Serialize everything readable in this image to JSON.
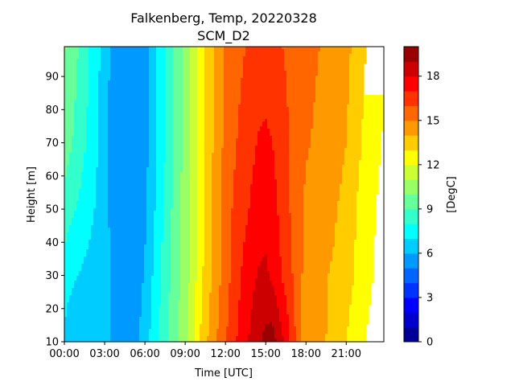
{
  "chart_data": {
    "type": "heatmap",
    "subtype": "filled-contour",
    "title": "Falkenberg, Temp, 20220328",
    "subtitle": "SCM_D2",
    "xlabel": "Time [UTC]",
    "ylabel": "Height [m]",
    "x_ticks": [
      "00:00",
      "03:00",
      "06:00",
      "09:00",
      "12:00",
      "15:00",
      "18:00",
      "21:00"
    ],
    "y_ticks": [
      "10",
      "20",
      "30",
      "40",
      "50",
      "60",
      "70",
      "80",
      "90"
    ],
    "x_range_hours": [
      0,
      23.8
    ],
    "y_range_m": [
      10,
      99
    ],
    "colorbar": {
      "label": "[DegC]",
      "ticks": [
        "0",
        "3",
        "6",
        "9",
        "12",
        "15",
        "18"
      ],
      "range": [
        0,
        20
      ],
      "level_step": 1,
      "colormap": "jet"
    },
    "grid": false,
    "transects": [
      {
        "height_m": 10,
        "x_hours": [
          0,
          0.3,
          0.8,
          1.5,
          2.5,
          3.5,
          4.5,
          5.5,
          6.0,
          6.5,
          7.0,
          7.5,
          8.0,
          8.5,
          9.0,
          9.5,
          10.0,
          10.5,
          11.0,
          11.5,
          12.0,
          12.5,
          13.0,
          13.5,
          14.0,
          14.5,
          15.0,
          15.5,
          16.0,
          16.5,
          17.0,
          17.5,
          18.0,
          19.0,
          20.0,
          21.0,
          22.0,
          23.0,
          23.8
        ],
        "temp_degc": [
          6.8,
          6.5,
          6.2,
          6.0,
          6.0,
          6.0,
          6.0,
          6.0,
          6.3,
          7.3,
          8.0,
          8.8,
          9.3,
          10.0,
          10.8,
          11.7,
          12.8,
          13.8,
          14.4,
          15.2,
          15.9,
          16.6,
          17.2,
          17.8,
          18.3,
          18.9,
          19.3,
          19.5,
          18.6,
          17.7,
          16.5,
          15.3,
          14.6,
          14.2,
          13.8,
          13.0,
          12.3,
          11.6,
          11.3
        ]
      },
      {
        "height_m": 30,
        "x_hours": [
          0,
          0.5,
          1.5,
          2.5,
          3.5,
          4.5,
          5.5,
          6.0,
          6.5,
          7.0,
          7.5,
          8.0,
          8.5,
          9.0,
          9.5,
          10.0,
          10.5,
          11.0,
          11.5,
          12.0,
          12.5,
          13.0,
          13.5,
          14.0,
          14.5,
          15.0,
          15.5,
          16.0,
          16.5,
          17.0,
          17.5,
          18.0,
          19.0,
          20.0,
          21.0,
          22.0,
          23.0,
          23.8
        ],
        "temp_degc": [
          7.5,
          7.2,
          6.8,
          6.4,
          6.0,
          5.7,
          5.7,
          6.1,
          6.9,
          7.7,
          8.5,
          9.2,
          9.9,
          10.6,
          11.3,
          12.4,
          13.3,
          14.1,
          14.8,
          15.5,
          16.2,
          16.8,
          17.4,
          17.8,
          18.1,
          18.2,
          17.8,
          17.2,
          16.6,
          16.0,
          15.3,
          14.6,
          14.2,
          13.9,
          13.4,
          12.7,
          12.0,
          11.5
        ]
      },
      {
        "height_m": 50,
        "x_hours": [
          0,
          0.5,
          1.5,
          2.5,
          3.5,
          4.5,
          5.5,
          6.0,
          6.5,
          7.0,
          7.5,
          8.0,
          8.5,
          9.0,
          9.5,
          10.0,
          10.5,
          11.0,
          11.5,
          12.0,
          12.5,
          13.0,
          13.5,
          14.0,
          14.5,
          15.0,
          15.5,
          16.0,
          16.5,
          17.0,
          17.5,
          18.0,
          19.0,
          20.0,
          21.0,
          22.0,
          23.0,
          23.8
        ],
        "temp_degc": [
          8.6,
          8.2,
          7.6,
          6.8,
          5.8,
          5.3,
          5.3,
          5.8,
          6.6,
          7.4,
          8.2,
          9.0,
          9.8,
          10.5,
          11.2,
          12.3,
          13.2,
          14.0,
          14.7,
          15.4,
          16.0,
          16.4,
          16.8,
          17.2,
          17.5,
          17.6,
          17.3,
          16.9,
          16.3,
          15.8,
          15.3,
          14.8,
          14.5,
          14.2,
          13.6,
          12.8,
          12.1,
          11.7
        ]
      },
      {
        "height_m": 70,
        "x_hours": [
          0,
          0.5,
          1.5,
          2.5,
          3.5,
          4.5,
          5.5,
          6.0,
          6.5,
          7.0,
          7.5,
          8.0,
          8.5,
          9.0,
          9.5,
          10.0,
          10.5,
          11.0,
          11.5,
          12.0,
          12.5,
          13.0,
          13.5,
          14.0,
          14.5,
          15.0,
          15.5,
          16.0,
          16.5,
          17.0,
          17.5,
          18.0,
          19.0,
          20.0,
          21.0,
          22.0,
          23.0,
          23.8
        ],
        "temp_degc": [
          9.6,
          9.1,
          8.1,
          7.0,
          5.7,
          5.2,
          5.2,
          5.6,
          6.4,
          7.2,
          8.0,
          8.8,
          9.6,
          10.3,
          11.1,
          12.2,
          13.1,
          13.9,
          14.6,
          15.3,
          15.8,
          16.1,
          16.4,
          16.8,
          17.1,
          17.2,
          17.0,
          16.7,
          16.2,
          15.8,
          15.4,
          15.1,
          14.8,
          14.6,
          14.0,
          13.1,
          12.3,
          11.9
        ]
      },
      {
        "height_m": 99,
        "x_hours": [
          0,
          0.5,
          1.5,
          2.5,
          3.5,
          4.5,
          5.5,
          6.0,
          6.5,
          7.0,
          7.5,
          8.0,
          8.5,
          9.0,
          9.5,
          10.0,
          10.5,
          11.0,
          11.5,
          12.0,
          12.5,
          13.0,
          13.5,
          14.0,
          14.5,
          15.0,
          15.5,
          16.0,
          16.5,
          17.0,
          17.5,
          18.0,
          19.0,
          20.0,
          21.0,
          22.0,
          23.0,
          23.8
        ],
        "temp_degc": [
          10.1,
          9.6,
          8.5,
          7.2,
          5.8,
          5.4,
          5.4,
          5.6,
          6.4,
          7.2,
          8.0,
          8.8,
          9.6,
          10.3,
          11.1,
          12.1,
          13.0,
          13.8,
          14.5,
          15.2,
          15.6,
          15.8,
          16.0,
          16.2,
          16.4,
          16.4,
          16.3,
          16.1,
          15.9,
          15.7,
          15.5,
          15.3,
          15.0,
          14.8,
          14.3,
          13.4,
          12.5,
          12.1
        ]
      }
    ]
  }
}
